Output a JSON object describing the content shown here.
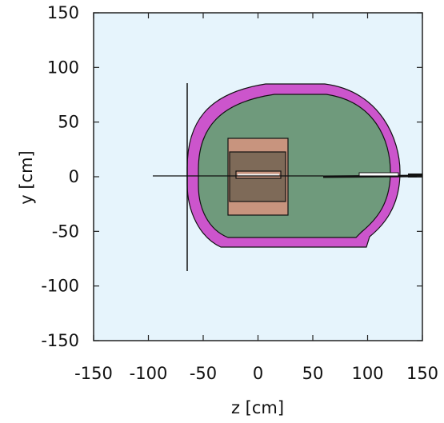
{
  "figure": {
    "xlabel": "z [cm]",
    "ylabel": "y [cm]",
    "xlim": [
      -150,
      150
    ],
    "ylim": [
      -150,
      150
    ],
    "xticks": [
      "-150",
      "-100",
      "-50",
      "0",
      "50",
      "100",
      "150"
    ],
    "yticks": [
      "150",
      "100",
      "50",
      "0",
      "-50",
      "-100",
      "-150"
    ],
    "colors": {
      "background": "#e6f4fc",
      "outer_shell": "#cc55cc",
      "inner_volume": "#6f9a7c",
      "core_block": "#c8947e",
      "core_inner": "#7e6a58",
      "outline": "#111111"
    }
  },
  "chart_data": {
    "type": "diagram",
    "xlabel": "z [cm]",
    "ylabel": "y [cm]",
    "xlim": [
      -150,
      150
    ],
    "ylim": [
      -150,
      150
    ],
    "grid": false,
    "regions": [
      {
        "name": "outer shell",
        "color": "#cc55cc"
      },
      {
        "name": "inner volume",
        "color": "#6f9a7c"
      },
      {
        "name": "core block",
        "z": [
          -30,
          25
        ],
        "y": [
          -36,
          34
        ],
        "color": "#c8947e"
      },
      {
        "name": "core inner",
        "z": [
          -28,
          22
        ],
        "y": [
          -25,
          21
        ],
        "color": "#7e6a58"
      }
    ],
    "lines": [
      {
        "name": "vertical plate",
        "z": -68,
        "y": [
          -88,
          86
        ]
      },
      {
        "name": "beam line",
        "z": [
          -97,
          150
        ],
        "y": 0
      }
    ]
  }
}
